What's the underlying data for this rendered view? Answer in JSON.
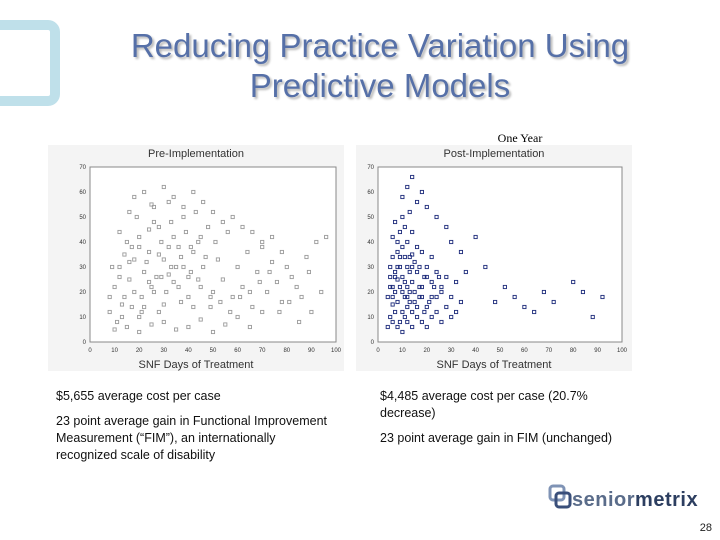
{
  "slide": {
    "title_line1": "Reducing Practice Variation Using",
    "title_line2": "Predictive Models",
    "one_year_label": "One Year",
    "page_number": "28",
    "brand_text_1": "senior",
    "brand_text_2": "metrix"
  },
  "chart_data": [
    {
      "type": "scatter",
      "title": "Pre-Implementation",
      "xlabel": "SNF Days of Treatment",
      "ylabel": "",
      "xlim": [
        0,
        100
      ],
      "ylim": [
        0,
        70
      ],
      "x_ticks": [
        "0",
        "10",
        "20",
        "30",
        "40",
        "50",
        "60",
        "70",
        "80",
        "90",
        "100"
      ],
      "y_ticks": [
        "0",
        "10",
        "20",
        "30",
        "40",
        "50",
        "60",
        "70"
      ],
      "marker_color": "#9a9a9a",
      "points": [
        [
          8,
          12
        ],
        [
          10,
          22
        ],
        [
          12,
          30
        ],
        [
          14,
          18
        ],
        [
          15,
          40
        ],
        [
          16,
          25
        ],
        [
          18,
          33
        ],
        [
          20,
          10
        ],
        [
          22,
          28
        ],
        [
          24,
          45
        ],
        [
          26,
          20
        ],
        [
          28,
          35
        ],
        [
          30,
          15
        ],
        [
          32,
          27
        ],
        [
          34,
          42
        ],
        [
          36,
          22
        ],
        [
          38,
          30
        ],
        [
          40,
          18
        ],
        [
          42,
          36
        ],
        [
          44,
          25
        ],
        [
          11,
          8
        ],
        [
          13,
          15
        ],
        [
          17,
          38
        ],
        [
          19,
          50
        ],
        [
          21,
          12
        ],
        [
          23,
          32
        ],
        [
          25,
          55
        ],
        [
          27,
          26
        ],
        [
          29,
          40
        ],
        [
          31,
          20
        ],
        [
          33,
          48
        ],
        [
          35,
          30
        ],
        [
          37,
          16
        ],
        [
          39,
          44
        ],
        [
          41,
          28
        ],
        [
          43,
          52
        ],
        [
          45,
          22
        ],
        [
          47,
          34
        ],
        [
          49,
          18
        ],
        [
          51,
          40
        ],
        [
          9,
          30
        ],
        [
          12,
          44
        ],
        [
          14,
          35
        ],
        [
          16,
          52
        ],
        [
          18,
          20
        ],
        [
          20,
          42
        ],
        [
          22,
          14
        ],
        [
          24,
          36
        ],
        [
          26,
          48
        ],
        [
          28,
          12
        ],
        [
          30,
          33
        ],
        [
          32,
          56
        ],
        [
          34,
          24
        ],
        [
          36,
          38
        ],
        [
          38,
          50
        ],
        [
          40,
          26
        ],
        [
          42,
          14
        ],
        [
          44,
          40
        ],
        [
          46,
          30
        ],
        [
          48,
          46
        ],
        [
          50,
          20
        ],
        [
          52,
          33
        ],
        [
          54,
          25
        ],
        [
          56,
          44
        ],
        [
          58,
          18
        ],
        [
          60,
          30
        ],
        [
          62,
          22
        ],
        [
          64,
          36
        ],
        [
          66,
          14
        ],
        [
          68,
          28
        ],
        [
          70,
          40
        ],
        [
          72,
          20
        ],
        [
          74,
          32
        ],
        [
          76,
          24
        ],
        [
          78,
          16
        ],
        [
          80,
          30
        ],
        [
          84,
          22
        ],
        [
          88,
          34
        ],
        [
          92,
          40
        ],
        [
          96,
          42
        ],
        [
          10,
          5
        ],
        [
          15,
          6
        ],
        [
          20,
          4
        ],
        [
          25,
          7
        ],
        [
          30,
          8
        ],
        [
          35,
          5
        ],
        [
          40,
          6
        ],
        [
          45,
          9
        ],
        [
          50,
          4
        ],
        [
          55,
          7
        ],
        [
          60,
          10
        ],
        [
          65,
          6
        ],
        [
          70,
          12
        ],
        [
          8,
          18
        ],
        [
          12,
          26
        ],
        [
          16,
          32
        ],
        [
          20,
          38
        ],
        [
          24,
          24
        ],
        [
          28,
          46
        ],
        [
          32,
          38
        ],
        [
          18,
          58
        ],
        [
          22,
          60
        ],
        [
          26,
          54
        ],
        [
          30,
          62
        ],
        [
          34,
          58
        ],
        [
          38,
          54
        ],
        [
          42,
          60
        ],
        [
          46,
          56
        ],
        [
          50,
          52
        ],
        [
          54,
          48
        ],
        [
          58,
          50
        ],
        [
          62,
          46
        ],
        [
          66,
          44
        ],
        [
          70,
          38
        ],
        [
          74,
          42
        ],
        [
          78,
          36
        ],
        [
          82,
          26
        ],
        [
          86,
          18
        ],
        [
          90,
          12
        ],
        [
          94,
          20
        ],
        [
          13,
          10
        ],
        [
          17,
          14
        ],
        [
          21,
          18
        ],
        [
          25,
          22
        ],
        [
          29,
          26
        ],
        [
          33,
          30
        ],
        [
          37,
          34
        ],
        [
          41,
          38
        ],
        [
          45,
          42
        ],
        [
          49,
          14
        ],
        [
          53,
          16
        ],
        [
          57,
          12
        ],
        [
          61,
          18
        ],
        [
          65,
          20
        ],
        [
          69,
          24
        ],
        [
          73,
          28
        ],
        [
          77,
          12
        ],
        [
          81,
          16
        ],
        [
          85,
          8
        ],
        [
          89,
          28
        ]
      ]
    },
    {
      "type": "scatter",
      "title": "Post-Implementation",
      "xlabel": "SNF Days of Treatment",
      "ylabel": "",
      "xlim": [
        0,
        100
      ],
      "ylim": [
        0,
        70
      ],
      "x_ticks": [
        "0",
        "10",
        "20",
        "30",
        "40",
        "50",
        "60",
        "70",
        "80",
        "90",
        "100"
      ],
      "y_ticks": [
        "0",
        "10",
        "20",
        "30",
        "40",
        "50",
        "60",
        "70"
      ],
      "marker_color": "#1c2a7a",
      "points": [
        [
          5,
          10
        ],
        [
          6,
          15
        ],
        [
          7,
          20
        ],
        [
          8,
          25
        ],
        [
          9,
          30
        ],
        [
          10,
          12
        ],
        [
          11,
          18
        ],
        [
          12,
          22
        ],
        [
          13,
          28
        ],
        [
          14,
          35
        ],
        [
          5,
          30
        ],
        [
          6,
          22
        ],
        [
          7,
          12
        ],
        [
          8,
          40
        ],
        [
          9,
          8
        ],
        [
          10,
          26
        ],
        [
          11,
          34
        ],
        [
          12,
          14
        ],
        [
          13,
          20
        ],
        [
          14,
          24
        ],
        [
          4,
          18
        ],
        [
          5,
          26
        ],
        [
          6,
          34
        ],
        [
          7,
          28
        ],
        [
          8,
          16
        ],
        [
          9,
          22
        ],
        [
          10,
          38
        ],
        [
          11,
          10
        ],
        [
          12,
          30
        ],
        [
          13,
          16
        ],
        [
          14,
          12
        ],
        [
          15,
          20
        ],
        [
          16,
          28
        ],
        [
          17,
          22
        ],
        [
          18,
          18
        ],
        [
          19,
          26
        ],
        [
          20,
          14
        ],
        [
          22,
          24
        ],
        [
          24,
          18
        ],
        [
          26,
          22
        ],
        [
          6,
          42
        ],
        [
          7,
          48
        ],
        [
          8,
          36
        ],
        [
          9,
          44
        ],
        [
          10,
          50
        ],
        [
          11,
          46
        ],
        [
          12,
          40
        ],
        [
          13,
          52
        ],
        [
          14,
          44
        ],
        [
          15,
          32
        ],
        [
          16,
          38
        ],
        [
          17,
          30
        ],
        [
          18,
          36
        ],
        [
          20,
          30
        ],
        [
          22,
          34
        ],
        [
          24,
          28
        ],
        [
          26,
          20
        ],
        [
          28,
          26
        ],
        [
          30,
          18
        ],
        [
          32,
          24
        ],
        [
          10,
          58
        ],
        [
          12,
          62
        ],
        [
          14,
          66
        ],
        [
          16,
          56
        ],
        [
          18,
          60
        ],
        [
          20,
          54
        ],
        [
          24,
          50
        ],
        [
          28,
          46
        ],
        [
          30,
          40
        ],
        [
          34,
          36
        ],
        [
          36,
          28
        ],
        [
          40,
          42
        ],
        [
          44,
          30
        ],
        [
          48,
          16
        ],
        [
          52,
          22
        ],
        [
          56,
          18
        ],
        [
          60,
          14
        ],
        [
          64,
          12
        ],
        [
          68,
          20
        ],
        [
          72,
          16
        ],
        [
          80,
          24
        ],
        [
          84,
          20
        ],
        [
          88,
          10
        ],
        [
          92,
          18
        ],
        [
          4,
          6
        ],
        [
          6,
          8
        ],
        [
          8,
          6
        ],
        [
          10,
          4
        ],
        [
          12,
          8
        ],
        [
          14,
          6
        ],
        [
          16,
          10
        ],
        [
          18,
          8
        ],
        [
          20,
          6
        ],
        [
          22,
          10
        ],
        [
          24,
          12
        ],
        [
          26,
          8
        ],
        [
          28,
          14
        ],
        [
          30,
          10
        ],
        [
          32,
          12
        ],
        [
          34,
          16
        ],
        [
          5,
          22
        ],
        [
          6,
          18
        ],
        [
          7,
          26
        ],
        [
          8,
          30
        ],
        [
          9,
          34
        ],
        [
          10,
          20
        ],
        [
          11,
          24
        ],
        [
          12,
          18
        ],
        [
          13,
          34
        ],
        [
          14,
          30
        ],
        [
          15,
          16
        ],
        [
          16,
          14
        ],
        [
          17,
          18
        ],
        [
          18,
          22
        ],
        [
          19,
          12
        ],
        [
          20,
          26
        ],
        [
          21,
          16
        ],
        [
          22,
          18
        ],
        [
          23,
          22
        ],
        [
          25,
          26
        ]
      ]
    }
  ],
  "captions": {
    "left_cost": "$5,655 average cost per case",
    "left_fim": "23 point average gain in Functional Improvement Measurement (“FIM”), an internationally recognized scale of disability",
    "right_cost": "$4,485 average cost per case (20.7% decrease)",
    "right_fim": "23 point average gain in FIM (unchanged)"
  }
}
